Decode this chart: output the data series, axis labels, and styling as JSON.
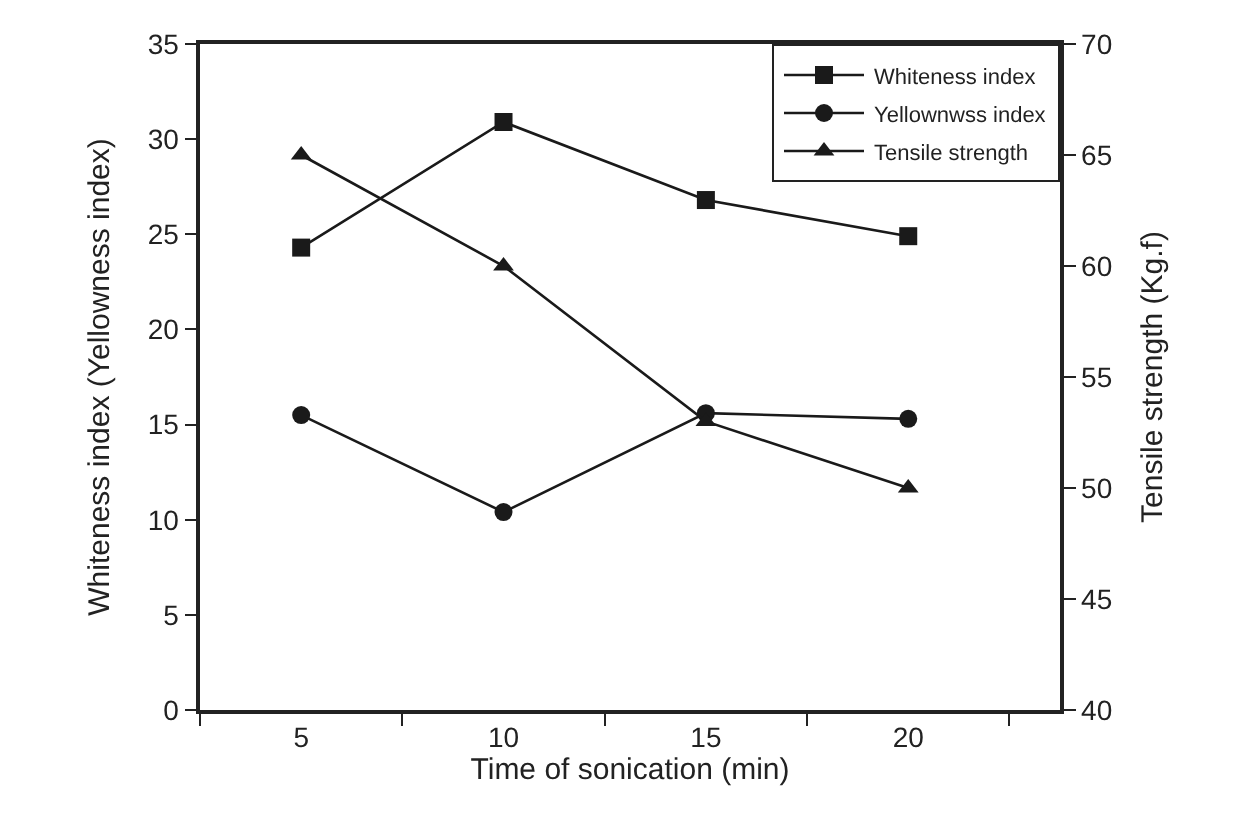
{
  "chart_data": {
    "type": "line",
    "xlabel": "Time of sonication (min)",
    "ylabel": "Whiteness index (Yellowness index)",
    "y2label": "Tensile strength (Kg.f)",
    "categories": [
      "5",
      "10",
      "15",
      "20"
    ],
    "series": [
      {
        "name": "Whiteness index",
        "color": "#1a1a1a",
        "marker": "square",
        "values": [
          24.3,
          30.9,
          26.8,
          24.9
        ]
      },
      {
        "name": "Yellownwss index",
        "color": "#1a1a1a",
        "marker": "circle",
        "values": [
          15.5,
          10.4,
          15.6,
          15.3
        ]
      },
      {
        "name": "Tensile strength",
        "color": "#1a1a1a",
        "marker": "triangle",
        "axis": "y2",
        "values": [
          65,
          60,
          53,
          50
        ]
      }
    ],
    "ylim": [
      0,
      35
    ],
    "yticks": [
      0,
      5,
      10,
      15,
      20,
      25,
      30,
      35
    ],
    "y2lim": [
      40,
      70
    ],
    "y2ticks": [
      40,
      45,
      50,
      55,
      60,
      65,
      70
    ],
    "legend": "top right",
    "line_style": "solid"
  }
}
